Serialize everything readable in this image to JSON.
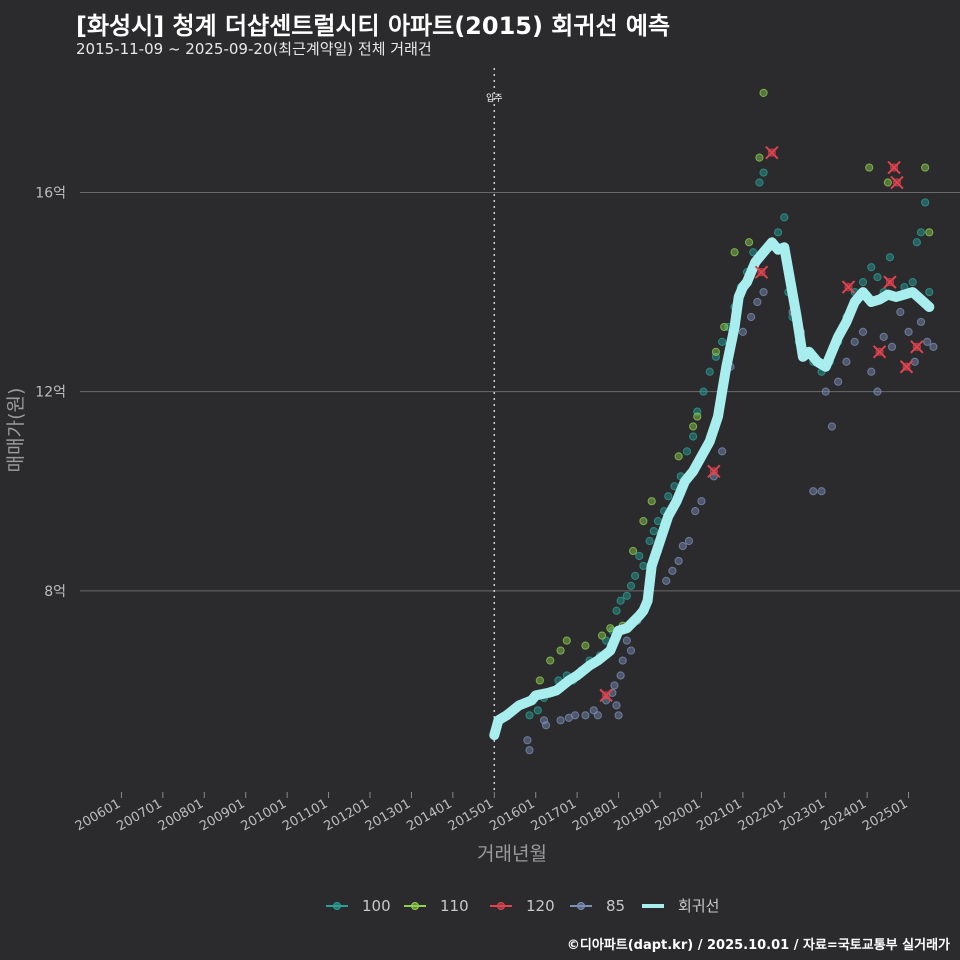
{
  "header": {
    "title": "[화성시] 청계 더샵센트럴시티 아파트(2015) 회귀선 예측",
    "subtitle": "2015-11-09 ~ 2025-09-20(최근계약일) 전체 거래건"
  },
  "footer": {
    "credit": "©디아파트(dapt.kr) / 2025.10.01 / 자료=국토교통부 실거래가"
  },
  "chart_data": {
    "type": "scatter",
    "title": "[화성시] 청계 더샵센트럴시티 아파트(2015) 회귀선 예측",
    "xlabel": "거래년월",
    "ylabel": "매매가(원)",
    "x_range": [
      2005.0,
      2026.0
    ],
    "ylim": [
      4.0,
      18.5
    ],
    "y_ticks": [
      8,
      12,
      16
    ],
    "y_tick_labels": [
      "8억",
      "12억",
      "16억"
    ],
    "x_tick_values": [
      2006,
      2007,
      2008,
      2009,
      2010,
      2011,
      2012,
      2013,
      2014,
      2015,
      2016,
      2017,
      2018,
      2019,
      2020,
      2021,
      2022,
      2023,
      2024,
      2025
    ],
    "x_tick_labels": [
      "200601",
      "200701",
      "200801",
      "200901",
      "201001",
      "201101",
      "201201",
      "201301",
      "201401",
      "201501",
      "201601",
      "201701",
      "201801",
      "201901",
      "202001",
      "202101",
      "202201",
      "202301",
      "202401",
      "202501"
    ],
    "annotation": {
      "x": 2015.0,
      "label": "입주"
    },
    "legend": {
      "position": "bottom",
      "items": [
        {
          "name": "100",
          "color": "#2aa198"
        },
        {
          "name": "110",
          "color": "#8fd14f"
        },
        {
          "name": "120",
          "color": "#e0434f"
        },
        {
          "name": "85",
          "color": "#7c8fb8"
        },
        {
          "name": "회귀선",
          "color": "#a8eeee"
        }
      ]
    },
    "regression": {
      "name": "회귀선",
      "color": "#a8eeee",
      "points": [
        [
          2015.0,
          5.1
        ],
        [
          2015.1,
          5.4
        ],
        [
          2015.3,
          5.5
        ],
        [
          2015.6,
          5.7
        ],
        [
          2015.9,
          5.8
        ],
        [
          2016.0,
          5.9
        ],
        [
          2016.3,
          5.95
        ],
        [
          2016.5,
          6.0
        ],
        [
          2016.8,
          6.2
        ],
        [
          2017.0,
          6.3
        ],
        [
          2017.3,
          6.5
        ],
        [
          2017.5,
          6.6
        ],
        [
          2017.8,
          6.8
        ],
        [
          2018.0,
          7.2
        ],
        [
          2018.2,
          7.25
        ],
        [
          2018.5,
          7.5
        ],
        [
          2018.6,
          7.6
        ],
        [
          2018.7,
          7.8
        ],
        [
          2018.8,
          8.5
        ],
        [
          2019.0,
          9.0
        ],
        [
          2019.2,
          9.5
        ],
        [
          2019.4,
          9.8
        ],
        [
          2019.6,
          10.2
        ],
        [
          2019.8,
          10.4
        ],
        [
          2020.0,
          10.7
        ],
        [
          2020.2,
          11.0
        ],
        [
          2020.4,
          11.5
        ],
        [
          2020.5,
          12.0
        ],
        [
          2020.6,
          12.5
        ],
        [
          2020.8,
          13.3
        ],
        [
          2020.9,
          13.9
        ],
        [
          2021.0,
          14.1
        ],
        [
          2021.1,
          14.2
        ],
        [
          2021.3,
          14.6
        ],
        [
          2021.5,
          14.8
        ],
        [
          2021.7,
          15.0
        ],
        [
          2021.85,
          14.85
        ],
        [
          2022.0,
          14.9
        ],
        [
          2022.15,
          14.2
        ],
        [
          2022.3,
          13.5
        ],
        [
          2022.45,
          12.7
        ],
        [
          2022.6,
          12.8
        ],
        [
          2022.8,
          12.6
        ],
        [
          2023.0,
          12.5
        ],
        [
          2023.15,
          12.8
        ],
        [
          2023.3,
          13.1
        ],
        [
          2023.5,
          13.4
        ],
        [
          2023.7,
          13.8
        ],
        [
          2023.9,
          14.0
        ],
        [
          2024.1,
          13.8
        ],
        [
          2024.3,
          13.85
        ],
        [
          2024.5,
          13.95
        ],
        [
          2024.7,
          13.9
        ],
        [
          2024.9,
          13.95
        ],
        [
          2025.1,
          14.0
        ],
        [
          2025.3,
          13.85
        ],
        [
          2025.5,
          13.7
        ]
      ]
    },
    "series": [
      {
        "name": "100",
        "color": "#2aa198",
        "points": [
          [
            2015.85,
            5.5
          ],
          [
            2016.05,
            5.6
          ],
          [
            2016.2,
            5.85
          ],
          [
            2016.4,
            6.0
          ],
          [
            2016.55,
            6.2
          ],
          [
            2016.75,
            6.3
          ],
          [
            2016.9,
            6.2
          ],
          [
            2017.1,
            6.4
          ],
          [
            2017.3,
            6.6
          ],
          [
            2017.55,
            6.7
          ],
          [
            2017.7,
            7.0
          ],
          [
            2017.85,
            7.2
          ],
          [
            2017.95,
            7.6
          ],
          [
            2018.05,
            7.8
          ],
          [
            2018.2,
            7.9
          ],
          [
            2018.3,
            8.1
          ],
          [
            2018.4,
            8.3
          ],
          [
            2018.5,
            8.7
          ],
          [
            2018.6,
            8.5
          ],
          [
            2018.75,
            9.0
          ],
          [
            2018.85,
            9.2
          ],
          [
            2018.95,
            9.4
          ],
          [
            2019.1,
            9.6
          ],
          [
            2019.2,
            9.9
          ],
          [
            2019.35,
            10.1
          ],
          [
            2019.5,
            10.3
          ],
          [
            2019.65,
            10.8
          ],
          [
            2019.8,
            11.1
          ],
          [
            2019.9,
            11.6
          ],
          [
            2020.05,
            12.0
          ],
          [
            2020.2,
            12.4
          ],
          [
            2020.35,
            12.7
          ],
          [
            2020.5,
            13.0
          ],
          [
            2020.65,
            13.3
          ],
          [
            2020.8,
            13.7
          ],
          [
            2020.95,
            14.1
          ],
          [
            2021.1,
            14.4
          ],
          [
            2021.25,
            14.8
          ],
          [
            2021.4,
            16.2
          ],
          [
            2021.5,
            16.4
          ],
          [
            2021.7,
            15.0
          ],
          [
            2021.85,
            15.2
          ],
          [
            2022.0,
            15.5
          ],
          [
            2022.1,
            14.0
          ],
          [
            2022.2,
            13.5
          ],
          [
            2022.35,
            13.0
          ],
          [
            2022.5,
            12.8
          ],
          [
            2022.7,
            12.6
          ],
          [
            2022.9,
            12.4
          ],
          [
            2023.1,
            12.6
          ],
          [
            2023.3,
            13.0
          ],
          [
            2023.5,
            13.5
          ],
          [
            2023.7,
            14.0
          ],
          [
            2023.9,
            14.2
          ],
          [
            2024.1,
            14.5
          ],
          [
            2024.25,
            14.3
          ],
          [
            2024.4,
            14.0
          ],
          [
            2024.55,
            14.7
          ],
          [
            2024.75,
            13.9
          ],
          [
            2024.9,
            14.1
          ],
          [
            2025.1,
            14.2
          ],
          [
            2025.2,
            15.0
          ],
          [
            2025.3,
            15.2
          ],
          [
            2025.4,
            15.8
          ],
          [
            2025.5,
            14.0
          ]
        ]
      },
      {
        "name": "110",
        "color": "#8fd14f",
        "points": [
          [
            2016.1,
            6.2
          ],
          [
            2016.35,
            6.6
          ],
          [
            2016.6,
            6.8
          ],
          [
            2016.75,
            7.0
          ],
          [
            2017.2,
            6.9
          ],
          [
            2017.6,
            7.1
          ],
          [
            2017.8,
            7.25
          ],
          [
            2018.1,
            7.3
          ],
          [
            2018.35,
            8.8
          ],
          [
            2018.6,
            9.4
          ],
          [
            2018.8,
            9.8
          ],
          [
            2019.45,
            10.7
          ],
          [
            2019.8,
            11.3
          ],
          [
            2019.9,
            11.5
          ],
          [
            2020.35,
            12.8
          ],
          [
            2020.55,
            13.3
          ],
          [
            2020.8,
            14.8
          ],
          [
            2021.15,
            15.0
          ],
          [
            2021.4,
            16.7
          ],
          [
            2021.5,
            18.0
          ],
          [
            2024.05,
            16.5
          ],
          [
            2024.5,
            16.2
          ],
          [
            2025.4,
            16.5
          ],
          [
            2025.5,
            15.2
          ]
        ]
      },
      {
        "name": "120",
        "color": "#e0434f",
        "points": [
          [
            2017.7,
            5.9
          ],
          [
            2020.3,
            10.4
          ],
          [
            2021.45,
            14.4
          ],
          [
            2021.7,
            16.8
          ],
          [
            2023.55,
            14.1
          ],
          [
            2024.3,
            12.8
          ],
          [
            2024.55,
            14.2
          ],
          [
            2024.65,
            16.5
          ],
          [
            2024.72,
            16.2
          ],
          [
            2024.95,
            12.5
          ],
          [
            2025.2,
            12.9
          ]
        ]
      },
      {
        "name": "85",
        "color": "#7c8fb8",
        "points": [
          [
            2015.8,
            5.0
          ],
          [
            2015.85,
            4.8
          ],
          [
            2016.2,
            5.4
          ],
          [
            2016.25,
            5.3
          ],
          [
            2016.6,
            5.4
          ],
          [
            2016.8,
            5.45
          ],
          [
            2016.95,
            5.5
          ],
          [
            2017.2,
            5.5
          ],
          [
            2017.4,
            5.6
          ],
          [
            2017.5,
            5.5
          ],
          [
            2017.7,
            5.8
          ],
          [
            2017.85,
            5.95
          ],
          [
            2017.9,
            6.1
          ],
          [
            2017.95,
            5.7
          ],
          [
            2018.0,
            5.5
          ],
          [
            2018.05,
            6.3
          ],
          [
            2018.1,
            6.6
          ],
          [
            2018.2,
            7.0
          ],
          [
            2018.3,
            6.8
          ],
          [
            2018.45,
            7.4
          ],
          [
            2018.6,
            7.6
          ],
          [
            2018.8,
            8.4
          ],
          [
            2018.95,
            8.8
          ],
          [
            2019.15,
            8.2
          ],
          [
            2019.3,
            8.4
          ],
          [
            2019.45,
            8.6
          ],
          [
            2019.55,
            8.9
          ],
          [
            2019.7,
            9.0
          ],
          [
            2019.85,
            9.6
          ],
          [
            2020.0,
            9.8
          ],
          [
            2020.3,
            10.3
          ],
          [
            2020.5,
            10.8
          ],
          [
            2020.7,
            12.5
          ],
          [
            2021.0,
            13.2
          ],
          [
            2021.2,
            13.5
          ],
          [
            2021.35,
            13.8
          ],
          [
            2021.5,
            14.0
          ],
          [
            2022.2,
            13.6
          ],
          [
            2022.4,
            13.2
          ],
          [
            2022.7,
            10.0
          ],
          [
            2022.9,
            10.0
          ],
          [
            2023.0,
            12.0
          ],
          [
            2023.15,
            11.3
          ],
          [
            2023.3,
            12.2
          ],
          [
            2023.5,
            12.6
          ],
          [
            2023.7,
            13.0
          ],
          [
            2023.9,
            13.2
          ],
          [
            2024.1,
            12.4
          ],
          [
            2024.25,
            12.0
          ],
          [
            2024.4,
            13.1
          ],
          [
            2024.6,
            12.9
          ],
          [
            2024.8,
            13.6
          ],
          [
            2025.0,
            13.2
          ],
          [
            2025.15,
            12.6
          ],
          [
            2025.3,
            13.4
          ],
          [
            2025.45,
            13.0
          ],
          [
            2025.6,
            12.9
          ]
        ]
      }
    ]
  }
}
